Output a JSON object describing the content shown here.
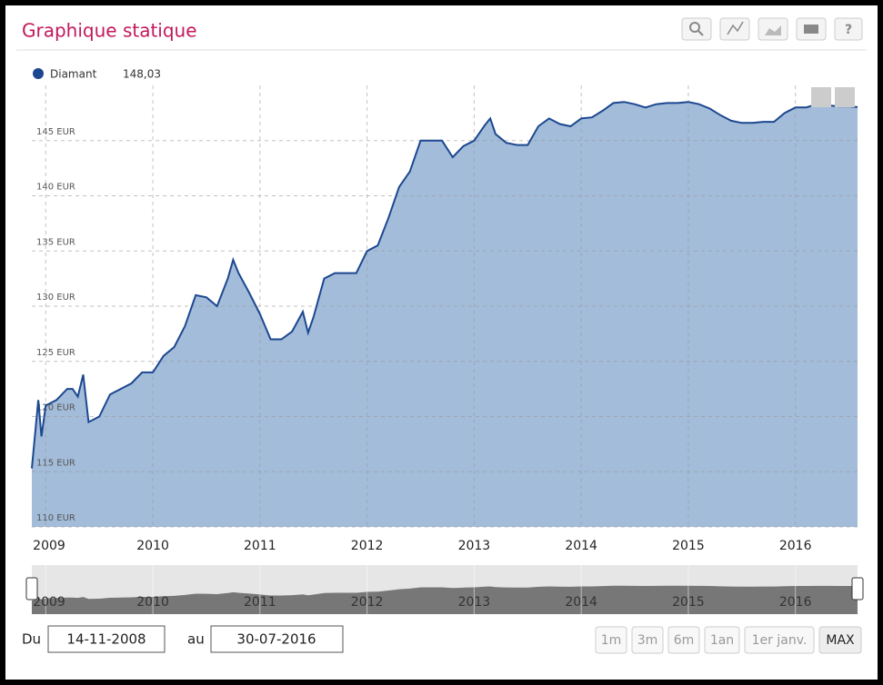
{
  "chart_data": {
    "type": "area",
    "title": "Graphique statique",
    "legend_value": "148,03",
    "series": [
      {
        "name": "Diamant",
        "color": "#1c4790",
        "fill": "#a3bcd9",
        "x": [
          2008.87,
          2008.93,
          2008.96,
          2009.0,
          2009.1,
          2009.2,
          2009.25,
          2009.3,
          2009.35,
          2009.4,
          2009.5,
          2009.6,
          2009.7,
          2009.8,
          2009.9,
          2010.0,
          2010.1,
          2010.2,
          2010.3,
          2010.4,
          2010.5,
          2010.6,
          2010.7,
          2010.75,
          2010.8,
          2010.9,
          2011.0,
          2011.1,
          2011.2,
          2011.3,
          2011.4,
          2011.45,
          2011.5,
          2011.6,
          2011.7,
          2011.8,
          2011.9,
          2012.0,
          2012.1,
          2012.2,
          2012.3,
          2012.4,
          2012.5,
          2012.6,
          2012.7,
          2012.8,
          2012.9,
          2013.0,
          2013.1,
          2013.15,
          2013.2,
          2013.3,
          2013.4,
          2013.5,
          2013.6,
          2013.7,
          2013.8,
          2013.9,
          2014.0,
          2014.1,
          2014.2,
          2014.3,
          2014.4,
          2014.5,
          2014.6,
          2014.7,
          2014.8,
          2014.9,
          2015.0,
          2015.1,
          2015.2,
          2015.3,
          2015.4,
          2015.5,
          2015.6,
          2015.7,
          2015.8,
          2015.9,
          2016.0,
          2016.1,
          2016.2,
          2016.3,
          2016.4,
          2016.5,
          2016.58
        ],
        "values": [
          115.3,
          121.5,
          118.2,
          121,
          121.5,
          122.5,
          122.5,
          121.8,
          123.8,
          119.5,
          120,
          122,
          122.5,
          123,
          124,
          124,
          125.5,
          126.3,
          128.2,
          131,
          130.8,
          130,
          132.5,
          134.2,
          133,
          131.2,
          129.3,
          127,
          127,
          127.7,
          129.5,
          127.6,
          129,
          132.5,
          133,
          133,
          133,
          135,
          135.5,
          138,
          140.8,
          142.2,
          145,
          145,
          145,
          143.5,
          144.5,
          145,
          146.4,
          147,
          145.6,
          144.8,
          144.6,
          144.6,
          146.3,
          147,
          146.5,
          146.3,
          147,
          147.1,
          147.7,
          148.4,
          148.5,
          148.3,
          148,
          148.3,
          148.4,
          148.4,
          148.5,
          148.3,
          147.9,
          147.3,
          146.8,
          146.6,
          146.6,
          146.7,
          146.7,
          147.5,
          148,
          148,
          148.3,
          148.2,
          148.1,
          148.1,
          148.03
        ]
      }
    ],
    "xlim": [
      2008.87,
      2016.58
    ],
    "xticks": [
      2009,
      2010,
      2011,
      2012,
      2013,
      2014,
      2015,
      2016
    ],
    "ylim": [
      110,
      150
    ],
    "yticks": [
      {
        "value": 110,
        "label": "110 EUR"
      },
      {
        "value": 115,
        "label": "115 EUR"
      },
      {
        "value": 120,
        "label": "120 EUR"
      },
      {
        "value": 125,
        "label": "125 EUR"
      },
      {
        "value": 130,
        "label": "130 EUR"
      },
      {
        "value": 135,
        "label": "135 EUR"
      },
      {
        "value": 140,
        "label": "140 EUR"
      },
      {
        "value": 145,
        "label": "145 EUR"
      }
    ],
    "grid": true
  },
  "controls": {
    "from_label": "Du",
    "from_date": "14-11-2008",
    "to_label": "au",
    "to_date": "30-07-2016",
    "help": "?",
    "ranges": [
      "1m",
      "3m",
      "6m",
      "1an",
      "1er janv.",
      "MAX"
    ]
  }
}
